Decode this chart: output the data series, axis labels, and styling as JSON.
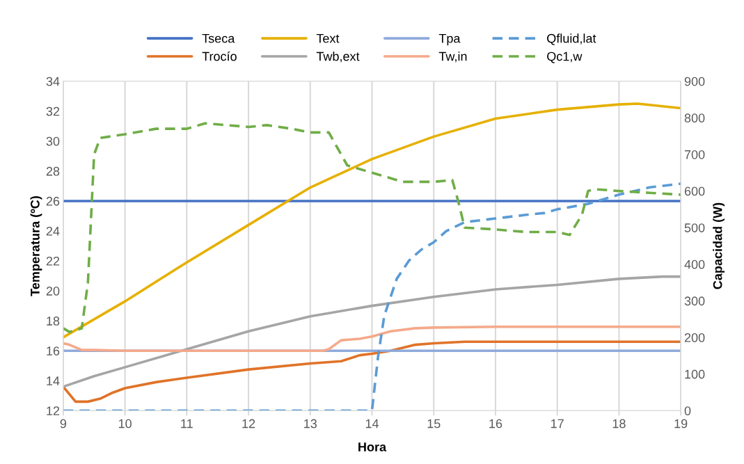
{
  "chart_data": {
    "type": "line",
    "xlabel": "Hora",
    "ylabel": "Temperatura (ºC)",
    "y2label": "Capacidad (W)",
    "xlim": [
      9,
      19
    ],
    "xticks": [
      9,
      10,
      11,
      12,
      13,
      14,
      15,
      16,
      17,
      18,
      19
    ],
    "ylim": [
      12,
      34
    ],
    "yticks": [
      12,
      14,
      16,
      18,
      20,
      22,
      24,
      26,
      28,
      30,
      32,
      34
    ],
    "y2lim": [
      0,
      900
    ],
    "y2ticks": [
      0,
      100,
      200,
      300,
      400,
      500,
      600,
      700,
      800,
      900
    ],
    "grid": "x",
    "legend": "top",
    "marker": "none",
    "series": [
      {
        "name": "Tseca",
        "color": "#4472c4",
        "x": [
          9,
          19
        ],
        "values": [
          26,
          26
        ]
      },
      {
        "name": "Trocío",
        "color": "#e07328",
        "x": [
          9,
          9.2,
          9.4,
          9.6,
          9.8,
          10,
          10.5,
          11,
          12,
          13,
          13.5,
          13.8,
          14,
          14.3,
          14.7,
          15,
          15.5,
          19
        ],
        "values": [
          13.6,
          12.6,
          12.6,
          12.8,
          13.2,
          13.5,
          13.9,
          14.2,
          14.75,
          15.15,
          15.3,
          15.7,
          15.8,
          16.0,
          16.4,
          16.5,
          16.6,
          16.6
        ]
      },
      {
        "name": "Text",
        "color": "#e6b000",
        "x": [
          9,
          10,
          11,
          12,
          13,
          14,
          15,
          16,
          17,
          18,
          18.3,
          19
        ],
        "values": [
          16.9,
          19.3,
          21.9,
          24.4,
          26.9,
          28.8,
          30.3,
          31.5,
          32.1,
          32.45,
          32.5,
          32.2
        ]
      },
      {
        "name": "Twb,ext",
        "color": "#a5a5a5",
        "x": [
          9,
          9.5,
          10,
          11,
          12,
          13,
          14,
          15,
          16,
          17,
          18,
          18.7,
          19
        ],
        "values": [
          13.6,
          14.3,
          14.9,
          16.1,
          17.3,
          18.3,
          19.0,
          19.6,
          20.1,
          20.4,
          20.8,
          20.95,
          20.95
        ]
      },
      {
        "name": "Tpa",
        "color": "#8faadc",
        "x": [
          9,
          19
        ],
        "values": [
          16,
          16
        ]
      },
      {
        "name": "Tw,in",
        "color": "#f4a98a",
        "x": [
          9,
          9.1,
          9.3,
          9.5,
          10,
          13.2,
          13.3,
          13.5,
          13.8,
          14,
          14.3,
          14.7,
          15,
          16,
          19
        ],
        "values": [
          16.5,
          16.4,
          16.05,
          16.05,
          16.0,
          16.0,
          16.1,
          16.7,
          16.8,
          16.95,
          17.3,
          17.5,
          17.55,
          17.6,
          17.6
        ]
      },
      {
        "name": "Qfluid,lat",
        "color": "#5b9bd5",
        "axis": "y2",
        "line_style": "dashed",
        "x": [
          9,
          14,
          14.1,
          14.2,
          14.4,
          14.6,
          14.8,
          15,
          15.2,
          15.5,
          16,
          16.5,
          16.8,
          17,
          17.5,
          18,
          18.5,
          19
        ],
        "values": [
          0,
          0,
          150,
          260,
          360,
          410,
          440,
          460,
          490,
          515,
          525,
          535,
          540,
          550,
          565,
          590,
          610,
          620
        ]
      },
      {
        "name": "Qc1,w",
        "color": "#70ad47",
        "axis": "y2",
        "line_style": "dashed",
        "x": [
          9,
          9.1,
          9.3,
          9.4,
          9.5,
          9.6,
          10,
          10.5,
          11,
          11.3,
          12,
          12.3,
          12.7,
          13,
          13.3,
          13.4,
          13.6,
          14,
          14.5,
          15,
          15.3,
          15.4,
          15.5,
          16,
          16.5,
          17,
          17.2,
          17.4,
          17.5,
          17.6,
          18,
          18.5,
          19
        ],
        "values": [
          225,
          215,
          225,
          350,
          700,
          745,
          755,
          770,
          770,
          785,
          775,
          780,
          770,
          760,
          760,
          730,
          670,
          650,
          625,
          625,
          630,
          570,
          500,
          495,
          488,
          488,
          480,
          535,
          600,
          605,
          600,
          595,
          590
        ]
      }
    ]
  }
}
